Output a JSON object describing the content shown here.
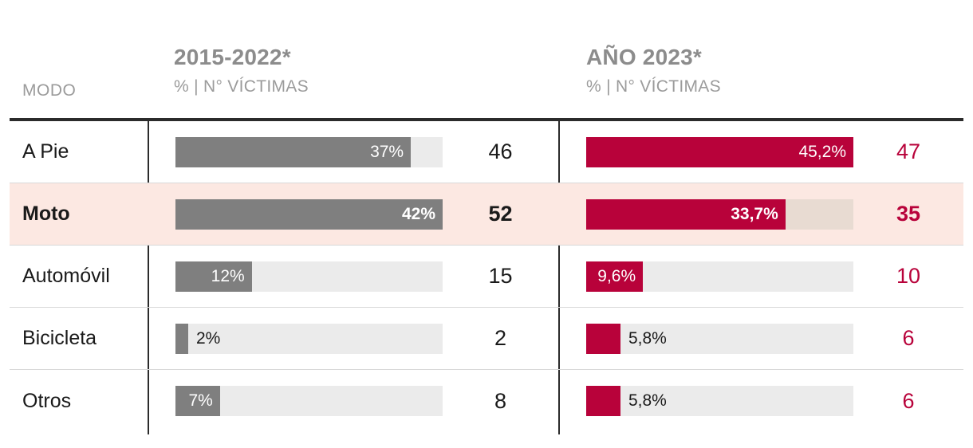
{
  "header": {
    "mode_label": "MODO",
    "col_2015_2022": {
      "title": "2015-2022*",
      "subtitle": "% | N° VÍCTIMAS"
    },
    "col_2023": {
      "title": "AÑO 2023*",
      "subtitle": "% | N° VÍCTIMAS"
    }
  },
  "colors": {
    "bar_gray": "#7f7f7f",
    "bar_red": "#b8023a",
    "track": "#ebebeb",
    "track_highlight": "#e8dbd2",
    "highlight_row_bg": "#fce8e2",
    "separator": "#d8d8d8",
    "rule_dark": "#2b2b2b",
    "header_gray": "#9b9b9b",
    "header_dark": "#8c8c8c",
    "ink": "#1a1a1a"
  },
  "chart_data": {
    "type": "bar",
    "title": "",
    "categories": [
      "A Pie",
      "Moto",
      "Automóvil",
      "Bicicleta",
      "Otros"
    ],
    "highlighted_category": "Moto",
    "series": [
      {
        "name": "2015-2022*",
        "unit": "% | N° VÍCTIMAS",
        "percents": [
          37,
          42,
          12,
          2,
          7
        ],
        "percent_labels": [
          "37%",
          "42%",
          "12%",
          "2%",
          "7%"
        ],
        "victims": [
          46,
          52,
          15,
          2,
          8
        ],
        "max_percent": 42,
        "labels_inside": [
          true,
          true,
          true,
          false,
          true
        ]
      },
      {
        "name": "AÑO 2023*",
        "unit": "% | N° VÍCTIMAS",
        "percents": [
          45.2,
          33.7,
          9.6,
          5.8,
          5.8
        ],
        "percent_labels": [
          "45,2%",
          "33,7%",
          "9,6%",
          "5,8%",
          "5,8%"
        ],
        "victims": [
          47,
          35,
          10,
          6,
          6
        ],
        "max_percent": 45.2,
        "labels_inside": [
          true,
          true,
          true,
          false,
          false
        ]
      }
    ],
    "layout": {
      "grid": false,
      "bar_scaling": "relative-to-series-max"
    }
  }
}
